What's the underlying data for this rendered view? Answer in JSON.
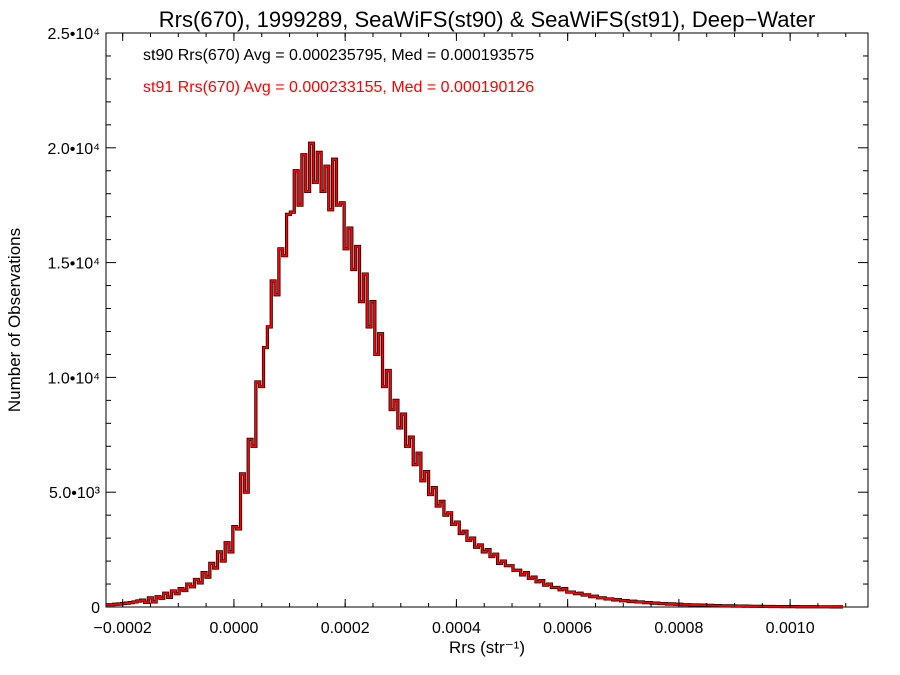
{
  "chart_data": {
    "type": "step-histogram",
    "title": "Rrs(670), 1999289, SeaWiFS(st90) & SeaWiFS(st91), Deep−Water",
    "xlabel": "Rrs (str⁻¹)",
    "ylabel": "Number of Observations",
    "xlim": [
      -0.00023,
      0.00114
    ],
    "ylim": [
      0,
      25000
    ],
    "x_ticks": [
      -0.0002,
      0.0,
      0.0002,
      0.0004,
      0.0006,
      0.0008,
      0.001
    ],
    "x_tick_labels": [
      "−0.0002",
      "0.0000",
      "0.0002",
      "0.0004",
      "0.0006",
      "0.0008",
      "0.0010"
    ],
    "y_ticks": [
      0,
      5000,
      10000,
      15000,
      20000,
      25000
    ],
    "y_tick_labels": [
      "0",
      "5.0•10³",
      "1.0•10⁴",
      "1.5•10⁴",
      "2.0•10⁴",
      "2.5•10⁴"
    ],
    "bin_width": 6.9e-06,
    "bin_centers": [
      -0.0002262,
      -0.0002193,
      -0.0002124,
      -0.0002055,
      -0.0001986,
      -0.0001917,
      -0.0001848,
      -0.0001779,
      -0.000171,
      -0.0001641,
      -0.0001572,
      -0.0001503,
      -0.0001434,
      -0.0001365,
      -0.0001296,
      -0.0001227,
      -0.0001158,
      -0.0001089,
      -0.000102,
      -9.51e-05,
      -8.82e-05,
      -8.13e-05,
      -7.44e-05,
      -6.75e-05,
      -6.06e-05,
      -5.37e-05,
      -4.68e-05,
      -3.99e-05,
      -3.3e-05,
      -2.61e-05,
      -1.92e-05,
      -1.23e-05,
      -5.4e-06,
      1.5e-06,
      8.4e-06,
      1.53e-05,
      2.22e-05,
      2.91e-05,
      3.6e-05,
      4.29e-05,
      4.98e-05,
      5.67e-05,
      6.36e-05,
      7.05e-05,
      7.74e-05,
      8.43e-05,
      9.12e-05,
      9.81e-05,
      0.000105,
      0.0001119,
      0.0001188,
      0.0001257,
      0.0001326,
      0.0001395,
      0.0001464,
      0.0001533,
      0.0001602,
      0.0001671,
      0.000174,
      0.0001809,
      0.0001878,
      0.0001947,
      0.0002016,
      0.0002085,
      0.0002154,
      0.0002223,
      0.0002292,
      0.0002361,
      0.000243,
      0.0002499,
      0.0002568,
      0.0002637,
      0.0002706,
      0.0002775,
      0.0002844,
      0.0002913,
      0.0002982,
      0.0003051,
      0.000312,
      0.0003189,
      0.0003258,
      0.0003327,
      0.0003396,
      0.0003465,
      0.0003534,
      0.0003603,
      0.0003672,
      0.0003741,
      0.000381,
      0.0003879,
      0.0003948,
      0.0004017,
      0.0004086,
      0.0004155,
      0.0004224,
      0.0004293,
      0.0004362,
      0.0004431,
      0.00045,
      0.0004569,
      0.0004638,
      0.0004707,
      0.0004776,
      0.0004845,
      0.0004914,
      0.0004983,
      0.0005052,
      0.0005121,
      0.000519,
      0.0005259,
      0.0005328,
      0.0005397,
      0.0005466,
      0.0005535,
      0.0005604,
      0.0005673,
      0.0005742,
      0.0005811,
      0.000588,
      0.0005949,
      0.0006018,
      0.0006087,
      0.0006156,
      0.0006225,
      0.0006294,
      0.0006363,
      0.0006432,
      0.0006501,
      0.000657,
      0.0006639,
      0.0006708,
      0.0006777,
      0.0006846,
      0.0006915,
      0.0006984,
      0.0007053,
      0.0007122,
      0.0007191,
      0.000726,
      0.0007329,
      0.0007398,
      0.0007467,
      0.0007536,
      0.0007605,
      0.0007674,
      0.0007743,
      0.0007812,
      0.0007881,
      0.000795,
      0.0008019,
      0.0008088,
      0.0008157,
      0.0008226,
      0.0008295,
      0.0008364,
      0.0008433,
      0.0008502,
      0.0008571,
      0.000864,
      0.0008709,
      0.0008778,
      0.0008847,
      0.0008916,
      0.0008985,
      0.0009054,
      0.0009123,
      0.0009192,
      0.0009261,
      0.000933,
      0.0009399,
      0.0009468,
      0.0009537,
      0.0009606,
      0.0009675,
      0.0009744,
      0.0009813,
      0.0009882,
      0.0009951,
      0.001002,
      0.0010089,
      0.0010158,
      0.0010227,
      0.0010296,
      0.0010365,
      0.0010434,
      0.0010503,
      0.0010572,
      0.0010641,
      0.001071,
      0.0010779,
      0.0010848,
      0.0010917,
      0.0010986,
      0.0011055,
      0.0011124
    ],
    "series": [
      {
        "name": "st90",
        "color": "#000000",
        "values": [
          100,
          100,
          120,
          130,
          150,
          170,
          190,
          220,
          260,
          300,
          200,
          400,
          220,
          450,
          380,
          600,
          420,
          700,
          580,
          800,
          720,
          1000,
          880,
          1200,
          1050,
          1500,
          1300,
          1900,
          1700,
          2400,
          2000,
          2800,
          2400,
          3500,
          3400,
          5800,
          5000,
          7300,
          7000,
          9800,
          9600,
          11300,
          12200,
          14200,
          13600,
          15600,
          15300,
          17100,
          17200,
          19000,
          17500,
          19700,
          18100,
          20200,
          18500,
          19800,
          18100,
          19200,
          17300,
          19500,
          17500,
          17600,
          15600,
          16500,
          14700,
          15700,
          13300,
          14500,
          12200,
          13300,
          11000,
          11900,
          9600,
          10300,
          8600,
          9000,
          7800,
          8400,
          7000,
          7400,
          6200,
          6700,
          5500,
          5900,
          4900,
          5200,
          4400,
          4600,
          4000,
          4100,
          3600,
          3700,
          3200,
          3300,
          2900,
          3000,
          2600,
          2700,
          2400,
          2500,
          2200,
          2300,
          1900,
          2000,
          1800,
          1800,
          1600,
          1600,
          1400,
          1500,
          1250,
          1300,
          1100,
          1150,
          950,
          1000,
          850,
          850,
          750,
          800,
          650,
          650,
          580,
          600,
          520,
          530,
          450,
          470,
          400,
          400,
          350,
          350,
          310,
          320,
          270,
          280,
          240,
          250,
          220,
          220,
          190,
          190,
          170,
          170,
          150,
          150,
          130,
          140,
          120,
          120,
          100,
          100,
          90,
          90,
          80,
          80,
          70,
          70,
          60,
          60,
          50,
          50,
          50,
          45,
          40,
          40,
          38,
          35,
          30,
          30,
          28,
          25,
          25,
          22,
          20,
          20,
          18,
          18,
          15,
          15,
          12,
          12,
          10,
          10,
          10,
          9,
          8,
          8,
          8,
          7,
          7,
          6
        ],
        "stats_label": "st90 Rrs(670) Avg = 0.000235795, Med = 0.000193575"
      },
      {
        "name": "st91",
        "color": "#ff0000",
        "values": [
          100,
          100,
          120,
          130,
          150,
          170,
          190,
          220,
          260,
          300,
          200,
          400,
          220,
          450,
          380,
          600,
          420,
          700,
          580,
          800,
          720,
          1000,
          880,
          1200,
          1050,
          1500,
          1300,
          1900,
          1700,
          2400,
          2000,
          2800,
          2400,
          3500,
          3400,
          5800,
          5000,
          7300,
          7000,
          9800,
          9600,
          11300,
          12200,
          14200,
          13600,
          15600,
          15300,
          17100,
          17200,
          19000,
          17500,
          19700,
          18100,
          20200,
          18500,
          19800,
          18100,
          19200,
          17300,
          19500,
          17500,
          17600,
          15600,
          16500,
          14700,
          15700,
          13300,
          14500,
          12200,
          13300,
          11000,
          11900,
          9600,
          10300,
          8600,
          9000,
          7800,
          8400,
          7000,
          7400,
          6200,
          6700,
          5500,
          5900,
          4900,
          5200,
          4400,
          4600,
          4000,
          4100,
          3600,
          3700,
          3200,
          3300,
          2900,
          3000,
          2600,
          2700,
          2400,
          2500,
          2200,
          2300,
          1900,
          2000,
          1800,
          1800,
          1600,
          1600,
          1400,
          1500,
          1250,
          1300,
          1100,
          1150,
          950,
          1000,
          850,
          850,
          750,
          800,
          650,
          650,
          580,
          600,
          520,
          530,
          450,
          470,
          400,
          400,
          350,
          350,
          310,
          320,
          270,
          280,
          240,
          250,
          220,
          220,
          190,
          190,
          170,
          170,
          150,
          150,
          130,
          140,
          120,
          120,
          100,
          100,
          90,
          90,
          80,
          80,
          70,
          70,
          60,
          60,
          50,
          50,
          50,
          45,
          40,
          40,
          38,
          35,
          30,
          30,
          28,
          25,
          25,
          22,
          20,
          20,
          18,
          18,
          15,
          15,
          12,
          12,
          10,
          10,
          10,
          9,
          8,
          8,
          8,
          7,
          7,
          6
        ],
        "stats_label": "st91 Rrs(670) Avg = 0.000233155, Med = 0.000190126"
      }
    ],
    "grid": false,
    "legend": "top-left"
  }
}
